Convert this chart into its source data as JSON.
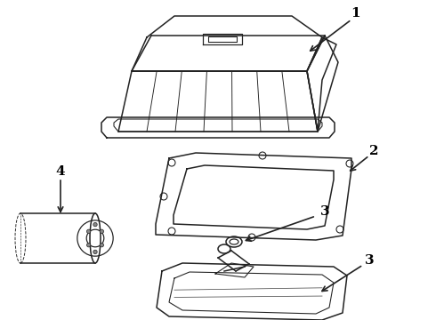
{
  "background_color": "#ffffff",
  "line_color": "#222222",
  "label_color": "#000000",
  "lw": 1.1
}
